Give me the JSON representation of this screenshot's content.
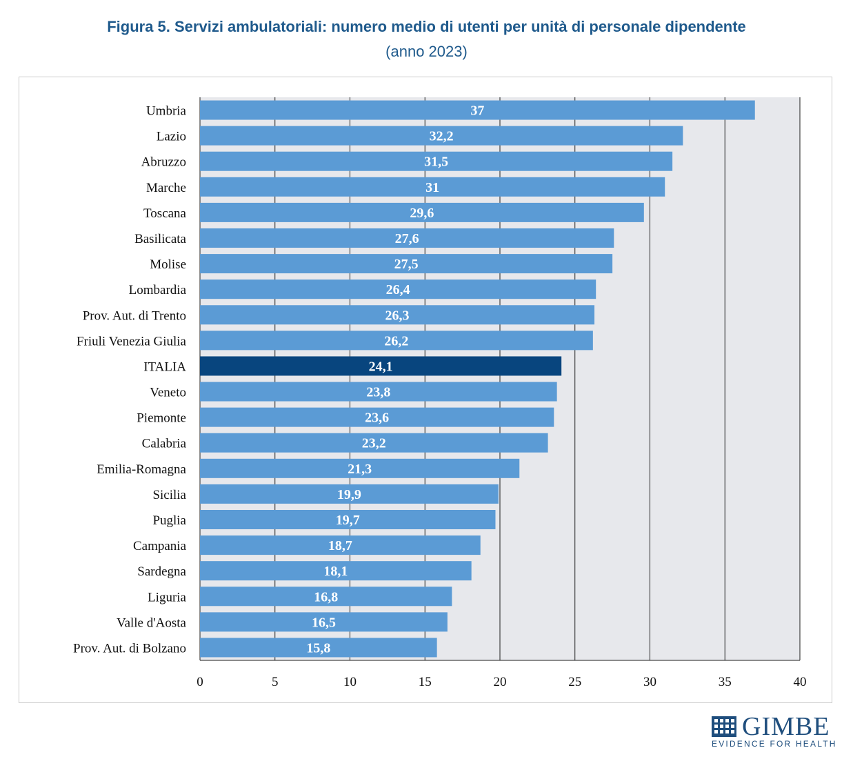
{
  "header": {
    "title": "Figura 5. Servizi ambulatoriali: numero medio di utenti per unità di personale dipendente",
    "subtitle": "(anno 2023)"
  },
  "logo": {
    "name": "GIMBE",
    "tagline": "EVIDENCE FOR HEALTH"
  },
  "colors": {
    "bar": "#5b9bd5",
    "highlight": "#08457e",
    "plot_background": "#e7e8ec",
    "title": "#1f5a8c"
  },
  "chart_data": {
    "type": "bar",
    "orientation": "horizontal",
    "title": "Figura 5. Servizi ambulatoriali: numero medio di utenti per unità di personale dipendente",
    "subtitle": "(anno 2023)",
    "xlabel": "",
    "ylabel": "",
    "xlim": [
      0,
      40
    ],
    "xticks": [
      "0",
      "5",
      "10",
      "15",
      "20",
      "25",
      "30",
      "35",
      "40"
    ],
    "grid": "vertical",
    "highlight_category": "ITALIA",
    "categories": [
      "Umbria",
      "Lazio",
      "Abruzzo",
      "Marche",
      "Toscana",
      "Basilicata",
      "Molise",
      "Lombardia",
      "Prov. Aut. di Trento",
      "Friuli Venezia Giulia",
      "ITALIA",
      "Veneto",
      "Piemonte",
      "Calabria",
      "Emilia-Romagna",
      "Sicilia",
      "Puglia",
      "Campania",
      "Sardegna",
      "Liguria",
      "Valle d'Aosta",
      "Prov. Aut. di Bolzano"
    ],
    "values": [
      37,
      32.2,
      31.5,
      31,
      29.6,
      27.6,
      27.5,
      26.4,
      26.3,
      26.2,
      24.1,
      23.8,
      23.6,
      23.2,
      21.3,
      19.9,
      19.7,
      18.7,
      18.1,
      16.8,
      16.5,
      15.8
    ],
    "value_labels": [
      "37",
      "32,2",
      "31,5",
      "31",
      "29,6",
      "27,6",
      "27,5",
      "26,4",
      "26,3",
      "26,2",
      "24,1",
      "23,8",
      "23,6",
      "23,2",
      "21,3",
      "19,9",
      "19,7",
      "18,7",
      "18,1",
      "16,8",
      "16,5",
      "15,8"
    ]
  }
}
